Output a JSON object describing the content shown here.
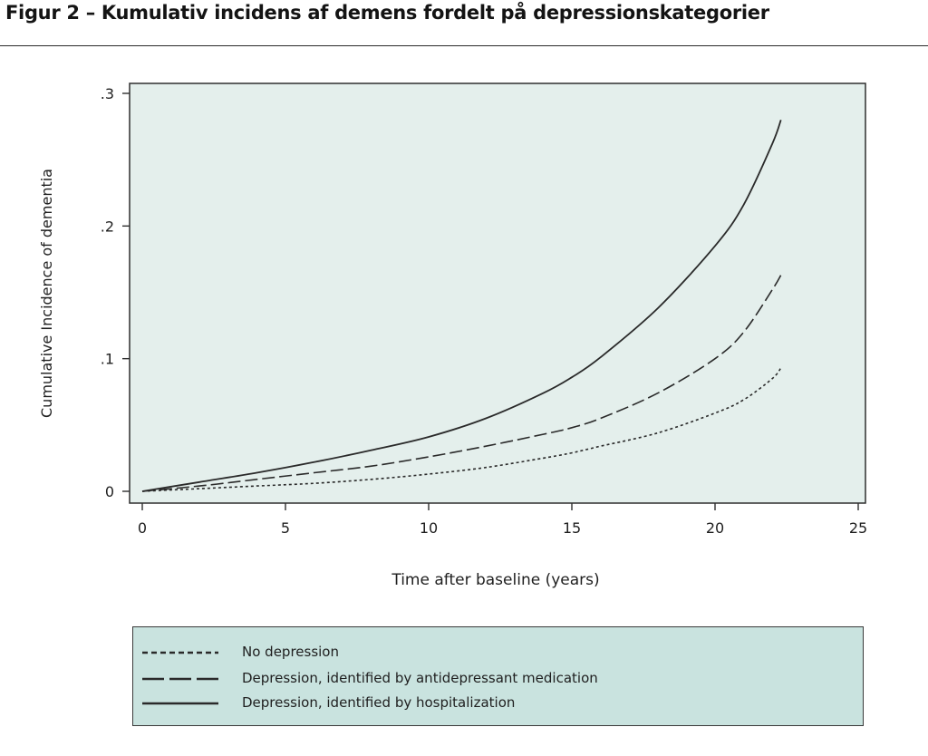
{
  "figure": {
    "title": "Figur 2 – Kumulativ incidens af demens fordelt på depressionskategorier"
  },
  "colors": {
    "plot_background": "#e4efec",
    "legend_background": "#c9e3df",
    "line": "#2a2a2a"
  },
  "legend": {
    "items": [
      {
        "label": "No depression",
        "style": "dotted"
      },
      {
        "label": "Depression, identified by antidepressant medication",
        "style": "dashed"
      },
      {
        "label": "Depression, identified by hospitalization",
        "style": "solid"
      }
    ]
  },
  "chart_data": {
    "type": "line",
    "title": "",
    "xlabel": "Time after baseline (years)",
    "ylabel": "Cumulative Incidence of dementia",
    "xlim": [
      0,
      25
    ],
    "ylim": [
      0,
      0.3
    ],
    "xticks": [
      "0",
      "5",
      "10",
      "15",
      "20",
      "25"
    ],
    "yticks": [
      "0",
      ".1",
      ".2",
      ".3"
    ],
    "grid": false,
    "legend_position": "bottom",
    "series": [
      {
        "name": "No depression",
        "style": "dotted",
        "x": [
          0,
          2,
          4,
          6,
          8,
          10,
          12,
          14,
          15,
          16,
          18,
          20,
          21,
          22,
          22.3
        ],
        "y": [
          0,
          0.002,
          0.004,
          0.006,
          0.009,
          0.013,
          0.018,
          0.025,
          0.029,
          0.034,
          0.044,
          0.059,
          0.069,
          0.085,
          0.093
        ]
      },
      {
        "name": "Depression, identified by antidepressant medication",
        "style": "dashed",
        "x": [
          0,
          2,
          4,
          6,
          8,
          10,
          12,
          14,
          15,
          16,
          18,
          20,
          21,
          22,
          22.3
        ],
        "y": [
          0,
          0.004,
          0.009,
          0.014,
          0.019,
          0.026,
          0.034,
          0.043,
          0.048,
          0.055,
          0.074,
          0.1,
          0.12,
          0.152,
          0.163
        ]
      },
      {
        "name": "Depression, identified by hospitalization",
        "style": "solid",
        "x": [
          0,
          2,
          4,
          6,
          8,
          10,
          12,
          14,
          15,
          16,
          18,
          20,
          21,
          22,
          22.3
        ],
        "y": [
          0,
          0.007,
          0.014,
          0.022,
          0.031,
          0.041,
          0.055,
          0.074,
          0.086,
          0.101,
          0.138,
          0.185,
          0.216,
          0.262,
          0.28
        ]
      }
    ]
  }
}
